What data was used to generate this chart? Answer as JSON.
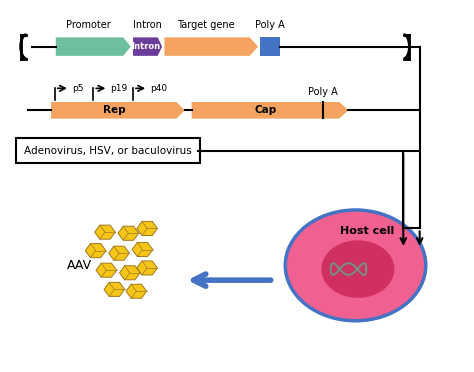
{
  "bg_color": "#ffffff",
  "promoter_color": "#6dbf9e",
  "intron_color": "#6a3d9a",
  "target_gene_color": "#f4a460",
  "poly_a_color": "#4472c4",
  "rep_cap_color": "#f4a460",
  "host_cell_outer_color": "#4472c4",
  "host_cell_pink": "#f06090",
  "host_cell_inner_pink": "#d03060",
  "aav_gold": "#f5c518",
  "aav_outline": "#a07820",
  "blue_arrow_color": "#4472c4",
  "labels": {
    "promoter": "Promoter",
    "intron": "Intron",
    "target_gene": "Target gene",
    "poly_a_top": "Poly A",
    "poly_a_bottom": "Poly A",
    "p5": "p5",
    "p19": "p19",
    "p40": "p40",
    "rep": "Rep",
    "cap": "Cap",
    "adeno_box": "Adenovirus, HSV, or baculovirus",
    "host_cell": "Host cell",
    "aav": "AAV"
  }
}
